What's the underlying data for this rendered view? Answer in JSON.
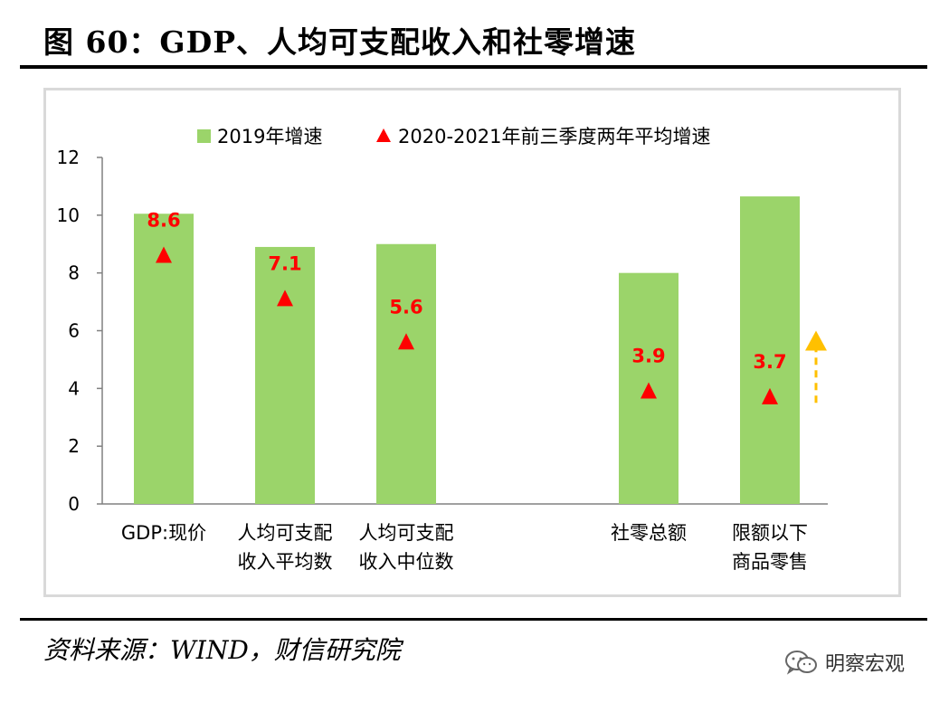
{
  "figure": {
    "title": "图 60：GDP、人均可支配收入和社零增速",
    "source": "资料来源：WIND，财信研究院",
    "brand": "明察宏观",
    "brand_icon": "wechat-icon"
  },
  "chart_data": {
    "type": "bar",
    "categories": [
      [
        "GDP:现价",
        ""
      ],
      [
        "人均可支配",
        "收入平均数"
      ],
      [
        "人均可支配",
        "收入中位数"
      ],
      [
        "",
        ""
      ],
      [
        "社零总额",
        ""
      ],
      [
        "限额以下",
        "商品零售"
      ]
    ],
    "series": [
      {
        "name": "2019年增速",
        "kind": "bar",
        "color": "#9bd46a",
        "values": [
          10.05,
          8.9,
          9.0,
          null,
          8.0,
          10.65
        ]
      },
      {
        "name": "2020-2021年前三季度两年平均增速",
        "kind": "triangle-marker",
        "color": "#ff0000",
        "values": [
          8.6,
          7.1,
          5.6,
          null,
          3.9,
          3.7
        ],
        "labels": [
          "8.6",
          "7.1",
          "5.6",
          "",
          "3.9",
          "3.7"
        ]
      }
    ],
    "ylim": [
      0,
      12
    ],
    "yticks": [
      "0",
      "2",
      "4",
      "6",
      "8",
      "10",
      "12"
    ],
    "legend_position": "top",
    "grid": false,
    "annotations": [
      {
        "type": "dashed-arrow-up",
        "color": "#ffc000",
        "near_category": "限额以下商品零售",
        "from": 3.5,
        "to": 6.0
      }
    ]
  }
}
